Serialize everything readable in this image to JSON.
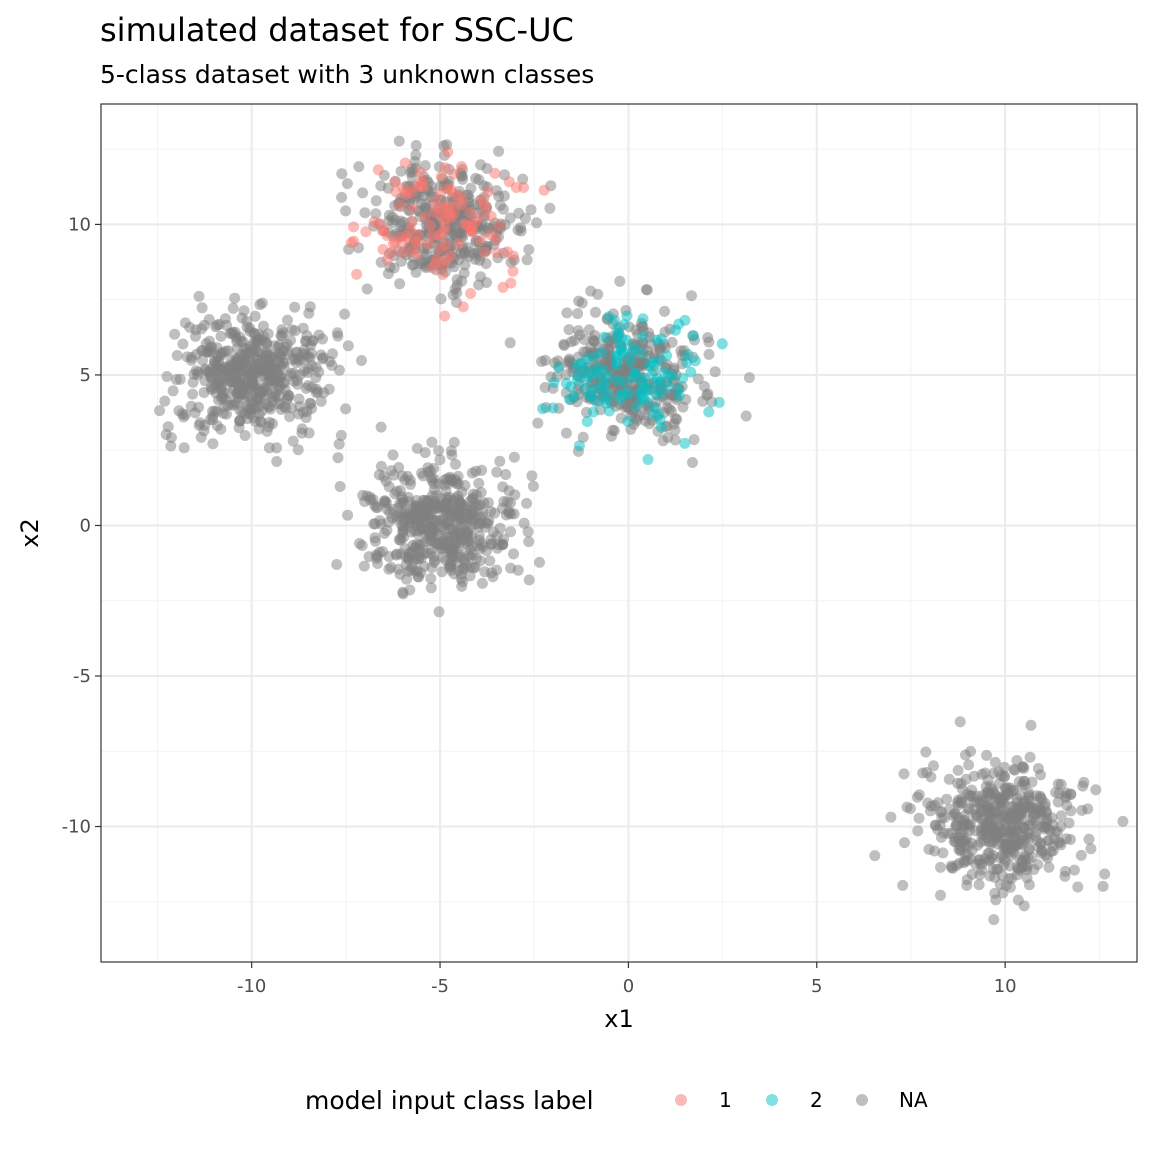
{
  "chart_data": {
    "type": "scatter",
    "title": "simulated dataset for SSC-UC",
    "subtitle": "5-class dataset with 3 unknown classes",
    "xlabel": "x1",
    "ylabel": "x2",
    "xlim": [
      -14,
      13.5
    ],
    "ylim": [
      -14.5,
      14
    ],
    "xticks": [
      -10,
      -5,
      0,
      5,
      10
    ],
    "yticks": [
      10,
      5,
      0,
      -5,
      -10
    ],
    "xtick_labels": [
      "-10",
      "-5",
      "0",
      "5",
      "10"
    ],
    "ytick_labels": [
      "10",
      "5",
      "0",
      "-5",
      "-10"
    ],
    "grid": true,
    "legend_position": "bottom",
    "legend": {
      "title": "model input class label",
      "entries": [
        {
          "label": "1",
          "color": "#F8766D"
        },
        {
          "label": "2",
          "color": "#00BFC4"
        },
        {
          "label": "NA",
          "color": "#7F7F7F"
        }
      ]
    },
    "series": [
      {
        "name": "NA",
        "color": "#7F7F7F",
        "clusters": [
          {
            "center": [
              -5.0,
              10.0
            ],
            "sd": 1.0,
            "count": 380
          },
          {
            "center": [
              -10.0,
              5.0
            ],
            "sd": 1.0,
            "count": 500
          },
          {
            "center": [
              0.0,
              5.0
            ],
            "sd": 1.0,
            "count": 380
          },
          {
            "center": [
              -5.0,
              0.0
            ],
            "sd": 1.0,
            "count": 500
          },
          {
            "center": [
              10.0,
              -10.0
            ],
            "sd": 1.0,
            "count": 500
          }
        ]
      },
      {
        "name": "1",
        "color": "#F8766D",
        "clusters": [
          {
            "center": [
              -5.0,
              10.0
            ],
            "sd": 1.0,
            "count": 120
          }
        ]
      },
      {
        "name": "2",
        "color": "#00BFC4",
        "clusters": [
          {
            "center": [
              0.0,
              5.0
            ],
            "sd": 1.0,
            "count": 120
          }
        ]
      }
    ]
  }
}
